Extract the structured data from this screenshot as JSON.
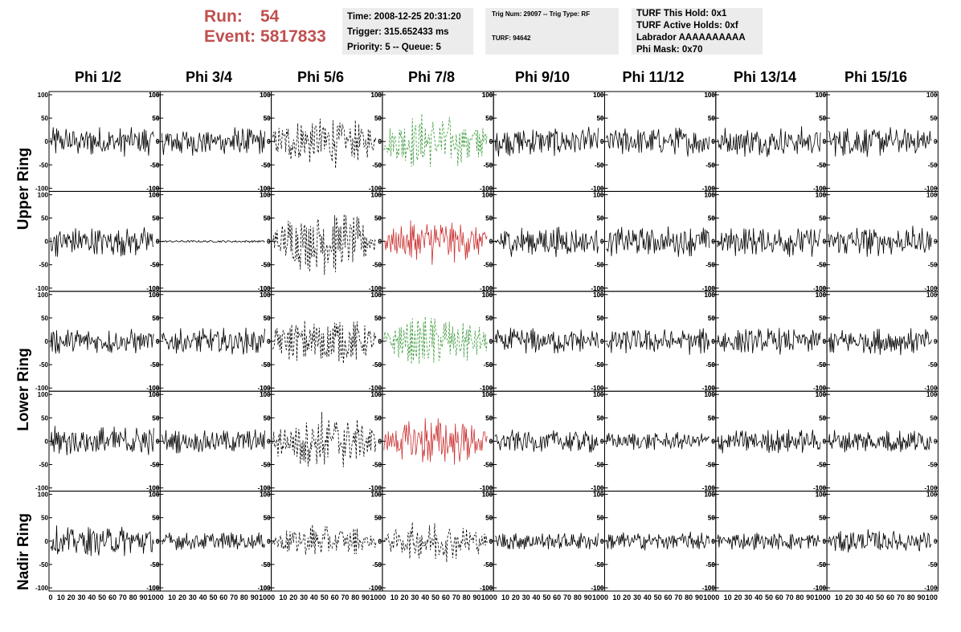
{
  "run_info": {
    "run_label": "Run:",
    "run_value": "54",
    "event_label": "Event:",
    "event_value": "5817833"
  },
  "time_box": {
    "time": "Time: 2008-12-25 20:31:20",
    "trigger": "Trigger: 315.652433 ms",
    "priority": "Priority: 5 -- Queue: 5"
  },
  "trig_box": {
    "trig": "Trig Num: 29097 -- Trig Type: RF",
    "turf": "TURF: 94642"
  },
  "turf_box": {
    "this_hold": "TURF This Hold: 0x1",
    "active_holds": "TURF Active Holds: 0xf",
    "labrador": "Labrador AAAAAAAAAA",
    "phi_mask": "Phi Mask: 0x70"
  },
  "columns": [
    "Phi 1/2",
    "Phi 3/4",
    "Phi 5/6",
    "Phi 7/8",
    "Phi 9/10",
    "Phi 11/12",
    "Phi 13/14",
    "Phi 15/16"
  ],
  "row_labels": [
    "Upper Ring",
    "Lower Ring",
    "Nadir Ring"
  ],
  "chart_data": {
    "type": "line",
    "y_ticks": [
      "100",
      "50",
      "0",
      "-50",
      "-100"
    ],
    "x_ticks": [
      "0",
      "10",
      "20",
      "30",
      "40",
      "50",
      "60",
      "70",
      "80",
      "90",
      "100"
    ],
    "ylim": [
      -100,
      100
    ],
    "xlim": [
      0,
      100
    ],
    "colors": {
      "normal": "#000000",
      "green": "#3c9a3c",
      "red": "#cc3333"
    },
    "panel_styles": [
      [
        "solid",
        "solid",
        "dashed",
        "green-dashed",
        "solid",
        "solid",
        "solid",
        "solid"
      ],
      [
        "solid",
        "flat",
        "dashed",
        "red-solid",
        "solid",
        "solid",
        "solid",
        "solid"
      ],
      [
        "solid",
        "solid",
        "dashed",
        "green-dashed",
        "solid",
        "solid",
        "solid",
        "solid"
      ],
      [
        "solid",
        "solid",
        "dashed",
        "red-solid",
        "solid",
        "solid",
        "solid",
        "solid"
      ],
      [
        "solid",
        "solid",
        "dashed",
        "dashed",
        "solid",
        "solid",
        "solid",
        "solid"
      ]
    ],
    "panel_amplitudes": [
      [
        25,
        25,
        45,
        50,
        25,
        25,
        25,
        25
      ],
      [
        25,
        2,
        55,
        40,
        25,
        25,
        25,
        25
      ],
      [
        22,
        22,
        45,
        45,
        22,
        22,
        22,
        22
      ],
      [
        25,
        20,
        50,
        45,
        20,
        15,
        20,
        20
      ],
      [
        25,
        15,
        30,
        35,
        15,
        15,
        15,
        20
      ]
    ]
  }
}
